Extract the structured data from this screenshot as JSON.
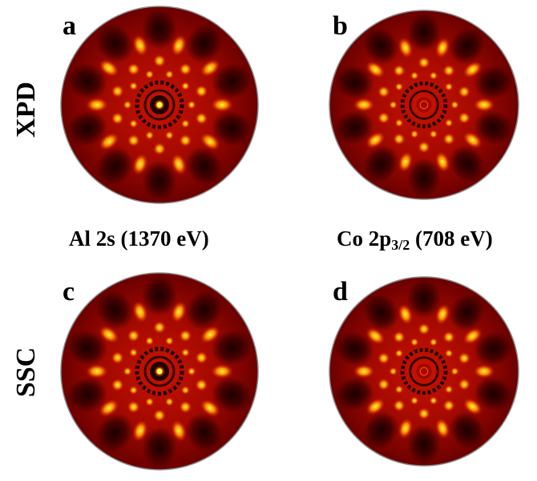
{
  "rows": {
    "top_label": "XPD",
    "bottom_label": "SSC"
  },
  "captions": {
    "left": "Al 2s (1370 eV)",
    "right_prefix": "Co 2p",
    "right_subscript": "3/2",
    "right_suffix": " (708 eV)"
  },
  "panels": [
    {
      "id": "a",
      "letter": "a",
      "center_bright": true,
      "ring_count": 10
    },
    {
      "id": "b",
      "letter": "b",
      "center_bright": false,
      "ring_count": 10
    },
    {
      "id": "c",
      "letter": "c",
      "center_bright": true,
      "ring_count": 10
    },
    {
      "id": "d",
      "letter": "d",
      "center_bright": false,
      "ring_count": 10
    }
  ],
  "colors": {
    "background_dark": "#6a0000",
    "mid_red": "#c81400",
    "bright_orange": "#ff8a00",
    "hot_yellow": "#ffff40",
    "dark_spot": "#1a0000",
    "rim": "#8a8a8a"
  }
}
